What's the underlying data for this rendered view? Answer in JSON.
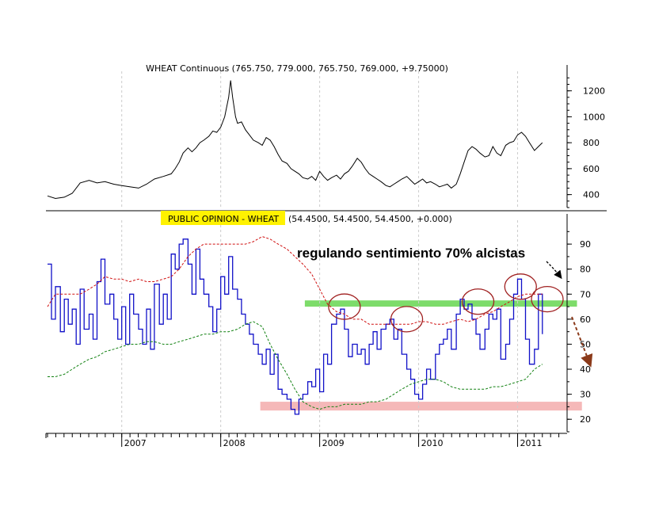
{
  "chart_data": [
    {
      "type": "line",
      "title": "WHEAT Continuous (765.750, 779.000, 765.750, 769.000, +9.75000)",
      "ylim": [
        300,
        1320
      ],
      "yticks": [
        400,
        600,
        800,
        1000,
        1200
      ],
      "x_range": [
        2006.25,
        2011.5
      ],
      "grid": true,
      "series": [
        {
          "color": "#000000",
          "x": [
            2006.25,
            2006.33,
            2006.42,
            2006.5,
            2006.58,
            2006.67,
            2006.75,
            2006.83,
            2006.92,
            2007.0,
            2007.08,
            2007.17,
            2007.25,
            2007.33,
            2007.42,
            2007.5,
            2007.54,
            2007.58,
            2007.62,
            2007.67,
            2007.71,
            2007.75,
            2007.79,
            2007.83,
            2007.88,
            2007.92,
            2007.96,
            2008.0,
            2008.04,
            2008.08,
            2008.1,
            2008.12,
            2008.15,
            2008.17,
            2008.21,
            2008.25,
            2008.29,
            2008.33,
            2008.38,
            2008.42,
            2008.46,
            2008.5,
            2008.54,
            2008.58,
            2008.62,
            2008.67,
            2008.71,
            2008.75,
            2008.79,
            2008.83,
            2008.88,
            2008.92,
            2008.96,
            2009.0,
            2009.04,
            2009.08,
            2009.12,
            2009.17,
            2009.21,
            2009.25,
            2009.29,
            2009.33,
            2009.38,
            2009.42,
            2009.46,
            2009.5,
            2009.54,
            2009.58,
            2009.62,
            2009.67,
            2009.71,
            2009.75,
            2009.79,
            2009.83,
            2009.88,
            2009.92,
            2009.96,
            2010.0,
            2010.04,
            2010.08,
            2010.12,
            2010.17,
            2010.21,
            2010.25,
            2010.29,
            2010.33,
            2010.38,
            2010.42,
            2010.46,
            2010.5,
            2010.54,
            2010.58,
            2010.62,
            2010.67,
            2010.71,
            2010.75,
            2010.79,
            2010.83,
            2010.88,
            2010.92,
            2010.96,
            2011.0,
            2011.04,
            2011.08,
            2011.12,
            2011.17,
            2011.21,
            2011.25
          ],
          "y": [
            390,
            370,
            380,
            410,
            490,
            510,
            490,
            500,
            480,
            470,
            460,
            450,
            480,
            520,
            540,
            560,
            600,
            650,
            720,
            760,
            730,
            760,
            800,
            820,
            850,
            890,
            880,
            920,
            1000,
            1150,
            1280,
            1150,
            1000,
            950,
            960,
            900,
            860,
            820,
            800,
            780,
            840,
            820,
            770,
            710,
            660,
            640,
            600,
            580,
            560,
            530,
            520,
            540,
            510,
            580,
            540,
            510,
            530,
            550,
            520,
            560,
            580,
            620,
            680,
            650,
            600,
            560,
            540,
            520,
            500,
            470,
            460,
            480,
            500,
            520,
            540,
            510,
            480,
            500,
            520,
            490,
            500,
            480,
            460,
            470,
            480,
            450,
            480,
            560,
            650,
            740,
            770,
            750,
            720,
            690,
            700,
            770,
            720,
            700,
            780,
            800,
            810,
            860,
            880,
            850,
            800,
            740,
            770,
            800
          ],
          "marks_note": ""
        }
      ]
    },
    {
      "type": "line",
      "title": "PUBLIC OPINION - WHEAT",
      "title_values": "(54.4500, 54.4500, 54.4500, +0.000)",
      "ylim": [
        15,
        97
      ],
      "yticks": [
        20,
        30,
        40,
        50,
        60,
        70,
        80,
        90
      ],
      "x_range": [
        2006.25,
        2011.5
      ],
      "x_tick_labels": [
        "2007",
        "2008",
        "2009",
        "2010",
        "2011"
      ],
      "x_tick_values": [
        2007.0,
        2008.0,
        2009.0,
        2010.0,
        2011.0
      ],
      "grid": true,
      "series": [
        {
          "color": "#1010c8",
          "x": [
            2006.25,
            2006.29,
            2006.33,
            2006.38,
            2006.42,
            2006.46,
            2006.5,
            2006.54,
            2006.58,
            2006.62,
            2006.67,
            2006.71,
            2006.75,
            2006.79,
            2006.83,
            2006.88,
            2006.92,
            2006.96,
            2007.0,
            2007.04,
            2007.08,
            2007.12,
            2007.17,
            2007.21,
            2007.25,
            2007.29,
            2007.33,
            2007.38,
            2007.42,
            2007.46,
            2007.5,
            2007.54,
            2007.58,
            2007.62,
            2007.67,
            2007.71,
            2007.75,
            2007.79,
            2007.83,
            2007.88,
            2007.92,
            2007.96,
            2008.0,
            2008.04,
            2008.08,
            2008.12,
            2008.17,
            2008.21,
            2008.25,
            2008.29,
            2008.33,
            2008.38,
            2008.42,
            2008.46,
            2008.5,
            2008.54,
            2008.58,
            2008.62,
            2008.67,
            2008.71,
            2008.75,
            2008.79,
            2008.83,
            2008.88,
            2008.92,
            2008.96,
            2009.0,
            2009.04,
            2009.08,
            2009.12,
            2009.17,
            2009.21,
            2009.25,
            2009.29,
            2009.33,
            2009.38,
            2009.42,
            2009.46,
            2009.5,
            2009.54,
            2009.58,
            2009.62,
            2009.67,
            2009.71,
            2009.75,
            2009.79,
            2009.83,
            2009.88,
            2009.92,
            2009.96,
            2010.0,
            2010.04,
            2010.08,
            2010.12,
            2010.17,
            2010.21,
            2010.25,
            2010.29,
            2010.33,
            2010.38,
            2010.42,
            2010.46,
            2010.5,
            2010.54,
            2010.58,
            2010.62,
            2010.67,
            2010.71,
            2010.75,
            2010.79,
            2010.83,
            2010.88,
            2010.92,
            2010.96,
            2011.0,
            2011.04,
            2011.08,
            2011.12,
            2011.17,
            2011.21,
            2011.25
          ],
          "y": [
            82,
            60,
            73,
            55,
            68,
            58,
            64,
            50,
            72,
            56,
            62,
            52,
            75,
            84,
            66,
            70,
            60,
            52,
            65,
            50,
            70,
            62,
            56,
            50,
            64,
            48,
            74,
            58,
            70,
            60,
            86,
            80,
            90,
            92,
            82,
            70,
            88,
            76,
            70,
            65,
            55,
            64,
            77,
            70,
            85,
            72,
            68,
            62,
            58,
            54,
            50,
            46,
            42,
            48,
            38,
            46,
            32,
            30,
            28,
            24,
            22,
            28,
            30,
            35,
            33,
            40,
            31,
            46,
            42,
            58,
            62,
            64,
            56,
            45,
            50,
            46,
            48,
            42,
            50,
            55,
            48,
            56,
            58,
            60,
            52,
            56,
            46,
            40,
            36,
            30,
            28,
            34,
            40,
            36,
            46,
            50,
            52,
            56,
            48,
            62,
            68,
            64,
            66,
            60,
            54,
            48,
            56,
            62,
            60,
            64,
            44,
            50,
            60,
            70,
            76,
            68,
            52,
            42,
            48,
            70,
            54
          ],
          "marks_note": ""
        },
        {
          "color": "#d01010",
          "style": "dashed",
          "x": [
            2006.25,
            2006.33,
            2006.42,
            2006.5,
            2006.58,
            2006.67,
            2006.75,
            2006.83,
            2006.92,
            2007.0,
            2007.08,
            2007.17,
            2007.25,
            2007.33,
            2007.42,
            2007.5,
            2007.58,
            2007.67,
            2007.75,
            2007.83,
            2007.92,
            2008.0,
            2008.08,
            2008.17,
            2008.25,
            2008.33,
            2008.42,
            2008.5,
            2008.58,
            2008.67,
            2008.75,
            2008.83,
            2008.92,
            2009.0,
            2009.08,
            2009.17,
            2009.25,
            2009.33,
            2009.42,
            2009.5,
            2009.58,
            2009.67,
            2009.75,
            2009.83,
            2009.92,
            2010.0,
            2010.08,
            2010.17,
            2010.25,
            2010.33,
            2010.42,
            2010.5,
            2010.58,
            2010.67,
            2010.75,
            2010.83,
            2010.92,
            2011.0,
            2011.08,
            2011.17,
            2011.25
          ],
          "y": [
            65,
            70,
            70,
            70,
            70,
            72,
            74,
            77,
            76,
            76,
            75,
            76,
            75,
            75,
            76,
            77,
            80,
            85,
            88,
            90,
            90,
            90,
            90,
            90,
            90,
            91,
            93,
            92,
            90,
            88,
            85,
            82,
            78,
            72,
            66,
            63,
            62,
            60,
            60,
            58,
            58,
            58,
            58,
            58,
            58,
            59,
            59,
            58,
            58,
            59,
            60,
            59,
            60,
            62,
            63,
            65,
            67,
            69,
            70,
            70,
            70
          ],
          "marks_note": ""
        },
        {
          "color": "#108010",
          "style": "dashed",
          "x": [
            2006.25,
            2006.33,
            2006.42,
            2006.5,
            2006.58,
            2006.67,
            2006.75,
            2006.83,
            2006.92,
            2007.0,
            2007.08,
            2007.17,
            2007.25,
            2007.33,
            2007.42,
            2007.5,
            2007.58,
            2007.67,
            2007.75,
            2007.83,
            2007.92,
            2008.0,
            2008.08,
            2008.17,
            2008.25,
            2008.33,
            2008.42,
            2008.5,
            2008.58,
            2008.67,
            2008.75,
            2008.83,
            2008.92,
            2009.0,
            2009.08,
            2009.17,
            2009.25,
            2009.33,
            2009.42,
            2009.5,
            2009.58,
            2009.67,
            2009.75,
            2009.83,
            2009.92,
            2010.0,
            2010.08,
            2010.17,
            2010.25,
            2010.33,
            2010.42,
            2010.5,
            2010.58,
            2010.67,
            2010.75,
            2010.83,
            2010.92,
            2011.0,
            2011.08,
            2011.17,
            2011.25
          ],
          "y": [
            37,
            37,
            38,
            40,
            42,
            44,
            45,
            47,
            48,
            49,
            50,
            50,
            51,
            51,
            50,
            50,
            51,
            52,
            53,
            54,
            54,
            55,
            55,
            56,
            58,
            59,
            57,
            50,
            44,
            38,
            32,
            27,
            25,
            24,
            25,
            25,
            26,
            26,
            26,
            27,
            27,
            28,
            30,
            32,
            34,
            35,
            36,
            36,
            35,
            33,
            32,
            32,
            32,
            32,
            33,
            33,
            34,
            35,
            36,
            40,
            42
          ],
          "marks_note": ""
        }
      ],
      "annotations": {
        "text": "regulando sentimiento 70% alcistas",
        "green_band": {
          "from_x": 2008.85,
          "to_x": 2011.6,
          "y_low": 65,
          "y_high": 67.5,
          "color": "#7ddc6a"
        },
        "red_band": {
          "from_x": 2008.4,
          "to_x": 2011.65,
          "y_low": 23.5,
          "y_high": 27,
          "color": "#f5b8b8"
        },
        "circles": [
          {
            "x": 2009.25,
            "y": 65
          },
          {
            "x": 2009.88,
            "y": 60
          },
          {
            "x": 2010.6,
            "y": 67
          },
          {
            "x": 2011.03,
            "y": 73
          },
          {
            "x": 2011.3,
            "y": 68
          }
        ],
        "circle_color": "#a02020"
      }
    }
  ],
  "colors": {
    "title_highlight": "#fff200",
    "arrow_black": "#000000",
    "arrow_brown": "#8b3a1a"
  }
}
